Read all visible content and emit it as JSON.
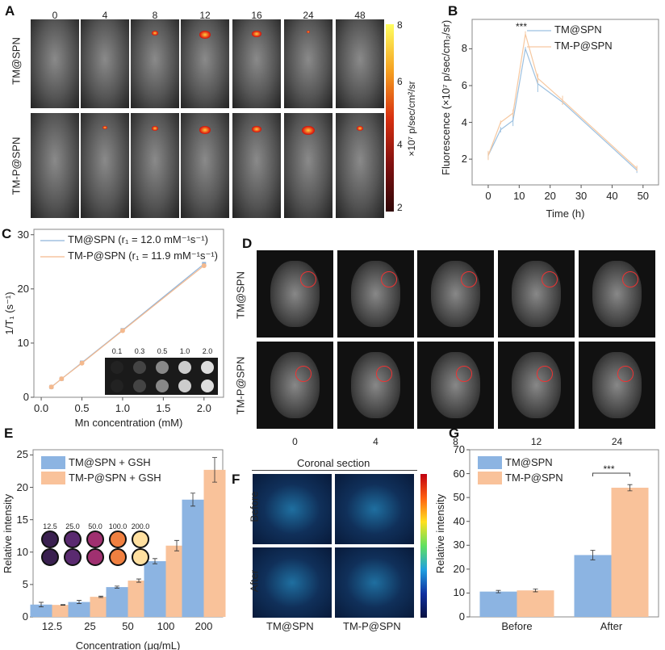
{
  "panelA": {
    "label": "A",
    "times": [
      "0",
      "4",
      "8",
      "12",
      "16",
      "24",
      "48"
    ],
    "rows": [
      "TM@SPN",
      "TM-P@SPN"
    ],
    "colorbar": {
      "ticks": [
        "8",
        "6",
        "4",
        "2"
      ],
      "title": "×10⁷ p/sec/cm²/sr"
    }
  },
  "panelD": {
    "label": "D",
    "rows": [
      "TM@SPN",
      "TM-P@SPN"
    ],
    "times": [
      "0",
      "4",
      "8",
      "12",
      "24"
    ]
  },
  "panelF": {
    "label": "F",
    "title": "Coronal section",
    "rows": [
      "Before",
      "After"
    ],
    "cols": [
      "TM@SPN",
      "TM-P@SPN"
    ]
  },
  "chart_data": [
    {
      "id": "B",
      "label": "B",
      "type": "line",
      "xlabel": "Time (h)",
      "ylabel": "Fluorescence (×10⁷ p/sec/cm₂/sr)",
      "xlim": [
        -5.2,
        55
      ],
      "ylim": [
        0.6,
        9.6
      ],
      "xticks": [
        0,
        10,
        20,
        30,
        40,
        50
      ],
      "yticks": [
        2,
        4,
        6,
        8
      ],
      "legend": "top-right",
      "annotation": "***",
      "x": [
        0,
        4,
        8,
        12,
        16,
        24,
        48
      ],
      "series": [
        {
          "name": "TM@SPN",
          "color": "#9cc0e0",
          "values": [
            2.2,
            3.6,
            4.1,
            8.0,
            6.1,
            5.1,
            1.4
          ],
          "errors": [
            0.2,
            0.15,
            0.3,
            0.1,
            0.45,
            0.1,
            0.15
          ]
        },
        {
          "name": "TM-P@SPN",
          "color": "#f6c8a0",
          "values": [
            2.2,
            4.0,
            4.5,
            8.8,
            6.4,
            5.2,
            1.5
          ],
          "errors": [
            0.25,
            0.1,
            0.2,
            0.15,
            0.25,
            0.25,
            0.15
          ]
        }
      ]
    },
    {
      "id": "C",
      "label": "C",
      "type": "line",
      "xlabel": "Mn concentration (mM)",
      "ylabel": "1/T₁ (s⁻¹)",
      "xlim": [
        -0.09,
        2.24
      ],
      "ylim": [
        0,
        31
      ],
      "xticks": [
        "0.0",
        "0.5",
        "1.0",
        "1.5",
        "2.0"
      ],
      "yticks": [
        0,
        10,
        20,
        30
      ],
      "legend": "top-left",
      "x": [
        0.125,
        0.25,
        0.5,
        1.0,
        2.0
      ],
      "series": [
        {
          "name": "TM@SPN (r₁ = 12.0 mM⁻¹s⁻¹)",
          "color": "#8fb3d9",
          "marker": "square",
          "values": [
            1.9,
            3.4,
            6.4,
            12.4,
            24.6
          ]
        },
        {
          "name": "TM-P@SPN (r₁ = 11.9 mM⁻¹s⁻¹)",
          "color": "#f4b98e",
          "marker": "circle",
          "values": [
            1.9,
            3.4,
            6.3,
            12.3,
            24.3
          ]
        }
      ],
      "inset_labels": [
        "0.1",
        "0.3",
        "0.5",
        "1.0",
        "2.0"
      ]
    },
    {
      "id": "E",
      "label": "E",
      "type": "bar",
      "xlabel": "Concentration (μg/mL)",
      "ylabel": "Relative intensity",
      "ylim": [
        0,
        25.8
      ],
      "yticks": [
        0,
        5,
        10,
        15,
        20,
        25
      ],
      "legend": "top-left",
      "categories": [
        "12.5",
        "25",
        "50",
        "100",
        "200"
      ],
      "series": [
        {
          "name": "TM@SPN + GSH",
          "color": "#8cb4e2",
          "values": [
            1.9,
            2.3,
            4.6,
            8.6,
            18.1
          ],
          "errors": [
            0.35,
            0.25,
            0.15,
            0.4,
            1.0
          ]
        },
        {
          "name": "TM-P@SPN + GSH",
          "color": "#f9c29a",
          "values": [
            1.85,
            3.1,
            5.6,
            11.0,
            22.7
          ],
          "errors": [
            0.05,
            0.1,
            0.25,
            0.8,
            1.9
          ]
        }
      ],
      "inset_labels": [
        "12.5",
        "25.0",
        "50.0",
        "100.0",
        "200.0"
      ]
    },
    {
      "id": "G",
      "label": "G",
      "type": "bar",
      "xlabel": "",
      "ylabel": "Relative intensity",
      "ylim": [
        0,
        70
      ],
      "yticks": [
        0,
        10,
        20,
        30,
        40,
        50,
        60,
        70
      ],
      "legend": "top-left",
      "annotation": "***",
      "categories": [
        "Before",
        "After"
      ],
      "series": [
        {
          "name": "TM@SPN",
          "color": "#8cb4e2",
          "values": [
            10.6,
            25.9
          ],
          "errors": [
            0.5,
            2.0
          ]
        },
        {
          "name": "TM-P@SPN",
          "color": "#f9c29a",
          "values": [
            11.1,
            54.1
          ],
          "errors": [
            0.6,
            1.3
          ]
        }
      ]
    }
  ]
}
